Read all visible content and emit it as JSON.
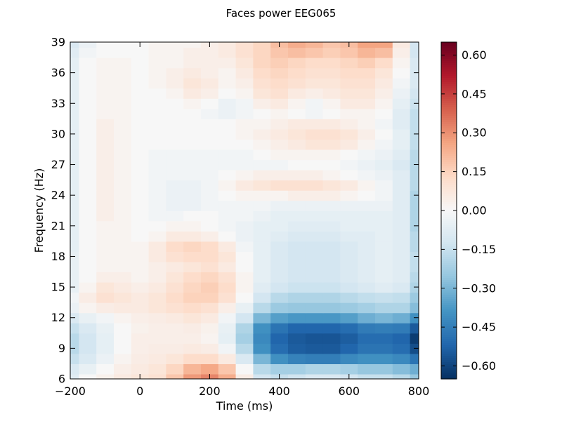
{
  "chart_data": {
    "type": "heatmap",
    "title": "Faces power EEG065",
    "xlabel": "Time (ms)",
    "ylabel": "Frequency (Hz)",
    "xlim": [
      -200,
      800
    ],
    "ylim": [
      6,
      39
    ],
    "x_ticks": [
      -200,
      0,
      200,
      400,
      600,
      800
    ],
    "x_tick_labels": [
      "−200",
      "0",
      "200",
      "400",
      "600",
      "800"
    ],
    "y_ticks": [
      6,
      9,
      12,
      15,
      18,
      21,
      24,
      27,
      30,
      33,
      36,
      39
    ],
    "y_tick_labels": [
      "6",
      "9",
      "12",
      "15",
      "18",
      "21",
      "24",
      "27",
      "30",
      "33",
      "36",
      "39"
    ],
    "colorbar": {
      "cmap": "RdBu_r",
      "vmin": -0.65,
      "vmax": 0.65,
      "ticks": [
        0.6,
        0.45,
        0.3,
        0.15,
        0.0,
        -0.15,
        -0.3,
        -0.45,
        -0.6
      ],
      "tick_labels": [
        "0.60",
        "0.45",
        "0.30",
        "0.15",
        "0.00",
        "−0.15",
        "−0.30",
        "−0.45",
        "−0.60"
      ]
    },
    "x": [
      -200,
      -150,
      -100,
      -50,
      0,
      50,
      100,
      150,
      200,
      250,
      300,
      350,
      400,
      450,
      500,
      550,
      600,
      650,
      700,
      750,
      800
    ],
    "y": [
      6,
      7,
      8,
      9,
      10,
      11,
      12,
      13,
      14,
      15,
      16,
      17,
      18,
      19,
      20,
      21,
      22,
      23,
      24,
      25,
      26,
      27,
      28,
      29,
      30,
      31,
      32,
      33,
      34,
      35,
      36,
      37,
      38,
      39
    ],
    "z": [
      [
        -0.08,
        0.0,
        0.03,
        0.06,
        0.08,
        0.1,
        0.18,
        0.28,
        0.32,
        0.24,
        0.05,
        -0.12,
        -0.15,
        -0.13,
        -0.1,
        -0.1,
        -0.12,
        -0.15,
        -0.15,
        -0.18,
        -0.25
      ],
      [
        -0.1,
        -0.05,
        0.0,
        0.04,
        0.06,
        0.08,
        0.14,
        0.22,
        0.25,
        0.18,
        0.0,
        -0.18,
        -0.22,
        -0.22,
        -0.2,
        -0.2,
        -0.22,
        -0.25,
        -0.25,
        -0.28,
        -0.32
      ],
      [
        -0.15,
        -0.1,
        -0.04,
        0.02,
        0.05,
        0.06,
        0.08,
        0.12,
        0.12,
        0.06,
        -0.1,
        -0.3,
        -0.4,
        -0.44,
        -0.45,
        -0.45,
        -0.42,
        -0.4,
        -0.4,
        -0.42,
        -0.48
      ],
      [
        -0.18,
        -0.12,
        -0.06,
        0.0,
        0.04,
        0.05,
        0.05,
        0.06,
        0.05,
        -0.02,
        -0.18,
        -0.4,
        -0.5,
        -0.54,
        -0.55,
        -0.55,
        -0.52,
        -0.48,
        -0.48,
        -0.5,
        -0.58
      ],
      [
        -0.18,
        -0.12,
        -0.06,
        0.0,
        0.04,
        0.04,
        0.04,
        0.04,
        0.02,
        -0.06,
        -0.22,
        -0.42,
        -0.52,
        -0.55,
        -0.56,
        -0.56,
        -0.54,
        -0.5,
        -0.5,
        -0.52,
        -0.62
      ],
      [
        -0.15,
        -0.1,
        -0.05,
        0.0,
        0.03,
        0.04,
        0.04,
        0.05,
        0.03,
        -0.05,
        -0.2,
        -0.4,
        -0.48,
        -0.52,
        -0.52,
        -0.52,
        -0.5,
        -0.46,
        -0.45,
        -0.46,
        -0.55
      ],
      [
        -0.1,
        -0.05,
        -0.02,
        0.02,
        0.04,
        0.05,
        0.06,
        0.08,
        0.06,
        -0.02,
        -0.12,
        -0.3,
        -0.36,
        -0.38,
        -0.38,
        -0.38,
        -0.36,
        -0.32,
        -0.3,
        -0.32,
        -0.4
      ],
      [
        -0.04,
        0.02,
        0.05,
        0.06,
        0.06,
        0.08,
        0.1,
        0.12,
        0.1,
        0.04,
        -0.05,
        -0.18,
        -0.24,
        -0.25,
        -0.25,
        -0.25,
        -0.24,
        -0.22,
        -0.2,
        -0.2,
        -0.28
      ],
      [
        -0.02,
        0.05,
        0.1,
        0.08,
        0.06,
        0.08,
        0.12,
        0.15,
        0.15,
        0.1,
        0.0,
        -0.12,
        -0.18,
        -0.2,
        -0.2,
        -0.2,
        -0.18,
        -0.16,
        -0.15,
        -0.16,
        -0.24
      ],
      [
        -0.05,
        0.02,
        0.08,
        0.06,
        0.04,
        0.06,
        0.1,
        0.14,
        0.16,
        0.12,
        0.02,
        -0.08,
        -0.12,
        -0.14,
        -0.14,
        -0.14,
        -0.12,
        -0.1,
        -0.08,
        -0.1,
        -0.2
      ],
      [
        -0.05,
        0.0,
        0.04,
        0.04,
        0.02,
        0.04,
        0.08,
        0.12,
        0.14,
        0.1,
        0.02,
        -0.06,
        -0.1,
        -0.12,
        -0.12,
        -0.12,
        -0.1,
        -0.08,
        -0.06,
        -0.08,
        -0.18
      ],
      [
        -0.05,
        0.0,
        0.02,
        0.02,
        0.02,
        0.04,
        0.06,
        0.08,
        0.1,
        0.06,
        0.0,
        -0.06,
        -0.1,
        -0.12,
        -0.12,
        -0.12,
        -0.1,
        -0.08,
        -0.06,
        -0.08,
        -0.16
      ],
      [
        -0.05,
        0.0,
        0.02,
        0.02,
        0.02,
        0.06,
        0.1,
        0.12,
        0.12,
        0.08,
        0.0,
        -0.06,
        -0.1,
        -0.12,
        -0.12,
        -0.12,
        -0.1,
        -0.08,
        -0.06,
        -0.08,
        -0.16
      ],
      [
        -0.06,
        0.0,
        0.02,
        0.02,
        0.02,
        0.06,
        0.12,
        0.14,
        0.12,
        0.06,
        -0.02,
        -0.06,
        -0.1,
        -0.12,
        -0.12,
        -0.12,
        -0.1,
        -0.08,
        -0.06,
        -0.08,
        -0.18
      ],
      [
        -0.06,
        0.0,
        0.02,
        0.02,
        0.0,
        0.02,
        0.06,
        0.06,
        0.04,
        0.0,
        -0.04,
        -0.06,
        -0.08,
        -0.1,
        -0.1,
        -0.1,
        -0.08,
        -0.08,
        -0.06,
        -0.08,
        -0.18
      ],
      [
        -0.06,
        0.0,
        0.02,
        0.02,
        0.0,
        0.0,
        0.02,
        0.02,
        0.0,
        -0.02,
        -0.04,
        -0.06,
        -0.06,
        -0.08,
        -0.08,
        -0.08,
        -0.06,
        -0.06,
        -0.06,
        -0.08,
        -0.2
      ],
      [
        -0.06,
        0.0,
        0.04,
        0.02,
        0.0,
        -0.02,
        -0.02,
        0.0,
        0.0,
        -0.02,
        -0.02,
        -0.04,
        -0.06,
        -0.06,
        -0.06,
        -0.06,
        -0.06,
        -0.06,
        -0.06,
        -0.08,
        -0.2
      ],
      [
        -0.06,
        0.0,
        0.04,
        0.02,
        0.0,
        -0.02,
        -0.04,
        -0.04,
        -0.02,
        -0.02,
        -0.02,
        -0.02,
        -0.04,
        -0.04,
        -0.04,
        -0.04,
        -0.04,
        -0.04,
        -0.04,
        -0.08,
        -0.2
      ],
      [
        -0.06,
        0.0,
        0.04,
        0.02,
        0.0,
        -0.02,
        -0.04,
        -0.04,
        -0.02,
        0.0,
        0.02,
        0.02,
        0.02,
        0.04,
        0.04,
        0.04,
        0.02,
        0.0,
        -0.02,
        -0.08,
        -0.2
      ],
      [
        -0.06,
        0.0,
        0.04,
        0.02,
        0.0,
        -0.02,
        -0.04,
        -0.04,
        -0.02,
        0.02,
        0.06,
        0.08,
        0.1,
        0.1,
        0.1,
        0.08,
        0.06,
        0.02,
        -0.02,
        -0.08,
        -0.18
      ],
      [
        -0.06,
        0.0,
        0.04,
        0.02,
        0.0,
        -0.02,
        -0.02,
        -0.02,
        -0.02,
        0.0,
        0.02,
        0.04,
        0.04,
        0.04,
        0.04,
        0.02,
        0.0,
        -0.02,
        -0.04,
        -0.08,
        -0.18
      ],
      [
        -0.06,
        0.0,
        0.04,
        0.02,
        0.0,
        -0.02,
        -0.02,
        -0.02,
        -0.02,
        -0.02,
        -0.02,
        -0.02,
        -0.02,
        0.0,
        0.0,
        0.0,
        -0.02,
        -0.04,
        -0.06,
        -0.1,
        -0.18
      ],
      [
        -0.06,
        0.0,
        0.04,
        0.02,
        0.0,
        -0.02,
        -0.02,
        -0.02,
        -0.02,
        -0.02,
        -0.02,
        0.0,
        0.02,
        0.02,
        0.02,
        0.02,
        0.0,
        -0.02,
        -0.04,
        -0.08,
        -0.18
      ],
      [
        -0.06,
        0.0,
        0.04,
        0.02,
        0.0,
        0.0,
        0.0,
        0.0,
        0.0,
        0.0,
        0.0,
        0.02,
        0.04,
        0.06,
        0.08,
        0.08,
        0.06,
        0.02,
        -0.02,
        -0.06,
        -0.16
      ],
      [
        -0.06,
        0.0,
        0.04,
        0.02,
        0.0,
        0.0,
        0.0,
        0.0,
        0.0,
        0.0,
        0.02,
        0.04,
        0.06,
        0.08,
        0.1,
        0.1,
        0.08,
        0.04,
        0.0,
        -0.06,
        -0.16
      ],
      [
        -0.06,
        0.0,
        0.04,
        0.02,
        0.0,
        0.0,
        0.0,
        0.0,
        0.0,
        0.0,
        0.02,
        0.02,
        0.04,
        0.06,
        0.06,
        0.06,
        0.04,
        0.02,
        -0.02,
        -0.08,
        -0.16
      ],
      [
        -0.06,
        0.0,
        0.02,
        0.02,
        0.0,
        0.0,
        0.0,
        0.0,
        -0.02,
        -0.04,
        -0.02,
        0.0,
        0.02,
        0.0,
        -0.02,
        0.0,
        0.02,
        0.02,
        0.0,
        -0.08,
        -0.16
      ],
      [
        -0.06,
        0.0,
        0.02,
        0.02,
        0.0,
        0.0,
        0.0,
        0.02,
        0.0,
        -0.04,
        -0.02,
        0.04,
        0.06,
        0.02,
        -0.02,
        0.02,
        0.06,
        0.06,
        0.02,
        -0.06,
        -0.14
      ],
      [
        -0.06,
        0.0,
        0.02,
        0.02,
        0.0,
        0.0,
        0.02,
        0.06,
        0.04,
        0.0,
        0.02,
        0.08,
        0.1,
        0.06,
        0.04,
        0.06,
        0.08,
        0.08,
        0.04,
        -0.04,
        -0.12
      ],
      [
        -0.06,
        0.0,
        0.02,
        0.02,
        0.0,
        0.02,
        0.04,
        0.08,
        0.06,
        0.02,
        0.04,
        0.1,
        0.12,
        0.1,
        0.08,
        0.08,
        0.1,
        0.1,
        0.06,
        -0.02,
        -0.1
      ],
      [
        -0.06,
        0.0,
        0.02,
        0.02,
        0.0,
        0.02,
        0.04,
        0.06,
        0.04,
        0.02,
        0.06,
        0.12,
        0.14,
        0.12,
        0.1,
        0.1,
        0.12,
        0.12,
        0.08,
        0.0,
        -0.1
      ],
      [
        -0.06,
        0.0,
        0.02,
        0.02,
        0.0,
        0.02,
        0.02,
        0.04,
        0.04,
        0.04,
        0.08,
        0.14,
        0.16,
        0.14,
        0.12,
        0.12,
        0.14,
        0.16,
        0.12,
        0.02,
        -0.1
      ],
      [
        -0.08,
        -0.02,
        0.0,
        0.0,
        0.0,
        0.02,
        0.02,
        0.04,
        0.04,
        0.06,
        0.1,
        0.14,
        0.18,
        0.2,
        0.18,
        0.16,
        0.18,
        0.22,
        0.2,
        0.04,
        -0.12
      ],
      [
        -0.1,
        -0.04,
        0.0,
        0.0,
        0.0,
        0.02,
        0.02,
        0.02,
        0.04,
        0.06,
        0.1,
        0.14,
        0.2,
        0.24,
        0.22,
        0.18,
        0.2,
        0.26,
        0.26,
        0.06,
        -0.12
      ]
    ]
  }
}
